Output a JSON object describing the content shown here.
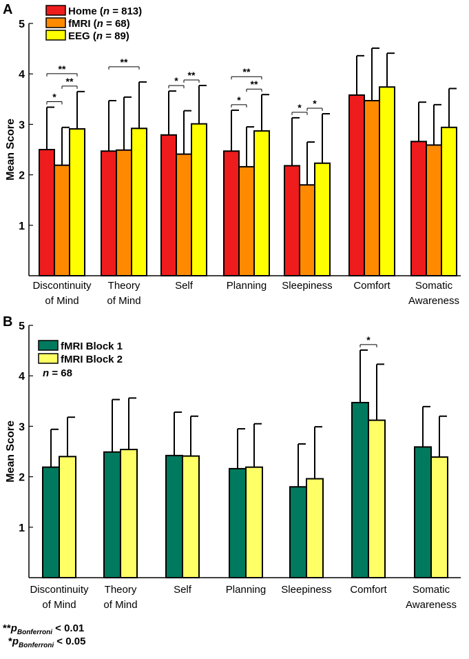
{
  "chart_data": [
    {
      "panel": "A",
      "type": "bar",
      "ylabel": "Mean Score",
      "ylim": [
        0,
        5
      ],
      "yticks": [
        1,
        2,
        3,
        4,
        5
      ],
      "grid": false,
      "legend_position": "top-left",
      "categories": [
        [
          "Discontinuity",
          "of Mind"
        ],
        [
          "Theory",
          "of Mind"
        ],
        [
          "Self"
        ],
        [
          "Planning"
        ],
        [
          "Sleepiness"
        ],
        [
          "Comfort"
        ],
        [
          "Somatic",
          "Awareness"
        ]
      ],
      "series": [
        {
          "name": "Home",
          "n": "813",
          "color": "#ee1c1c",
          "values": [
            2.5,
            2.47,
            2.79,
            2.47,
            2.18,
            3.58,
            2.66
          ],
          "errors": [
            0.84,
            1.0,
            0.87,
            0.81,
            0.95,
            0.78,
            0.78
          ]
        },
        {
          "name": "fMRI",
          "n": "68",
          "color": "#ff8a00",
          "values": [
            2.19,
            2.49,
            2.41,
            2.16,
            1.8,
            3.47,
            2.59
          ],
          "errors": [
            0.75,
            1.05,
            0.86,
            0.79,
            0.85,
            1.04,
            0.8
          ]
        },
        {
          "name": "EEG",
          "n": "89",
          "color": "#ffff00",
          "values": [
            2.91,
            2.92,
            3.01,
            2.87,
            2.23,
            3.74,
            2.94
          ],
          "errors": [
            0.74,
            0.92,
            0.76,
            0.72,
            0.98,
            0.67,
            0.77
          ]
        }
      ],
      "significance": [
        {
          "category": 0,
          "from": 0,
          "to": 2,
          "label": "**"
        },
        {
          "category": 0,
          "from": 0,
          "to": 1,
          "label": "*"
        },
        {
          "category": 0,
          "from": 1,
          "to": 2,
          "label": "**"
        },
        {
          "category": 1,
          "from": 0,
          "to": 2,
          "label": "**"
        },
        {
          "category": 2,
          "from": 0,
          "to": 1,
          "label": "*"
        },
        {
          "category": 2,
          "from": 1,
          "to": 2,
          "label": "**"
        },
        {
          "category": 3,
          "from": 0,
          "to": 2,
          "label": "**"
        },
        {
          "category": 3,
          "from": 0,
          "to": 1,
          "label": "*"
        },
        {
          "category": 3,
          "from": 1,
          "to": 2,
          "label": "**"
        },
        {
          "category": 4,
          "from": 0,
          "to": 1,
          "label": "*"
        },
        {
          "category": 4,
          "from": 1,
          "to": 2,
          "label": "*"
        }
      ]
    },
    {
      "panel": "B",
      "type": "bar",
      "ylabel": "Mean Score",
      "ylim": [
        0,
        5
      ],
      "yticks": [
        1,
        2,
        3,
        4,
        5
      ],
      "grid": false,
      "legend_position": "top-left",
      "note": "n = 68",
      "categories": [
        [
          "Discontinuity",
          "of Mind"
        ],
        [
          "Theory",
          "of Mind"
        ],
        [
          "Self"
        ],
        [
          "Planning"
        ],
        [
          "Sleepiness"
        ],
        [
          "Comfort"
        ],
        [
          "Somatic",
          "Awareness"
        ]
      ],
      "series": [
        {
          "name": "fMRI Block 1",
          "color": "#007a5e",
          "values": [
            2.19,
            2.49,
            2.42,
            2.16,
            1.8,
            3.47,
            2.59
          ],
          "errors": [
            0.75,
            1.04,
            0.86,
            0.79,
            0.85,
            1.04,
            0.8
          ]
        },
        {
          "name": "fMRI Block 2",
          "color": "#ffff66",
          "values": [
            2.4,
            2.54,
            2.41,
            2.19,
            1.96,
            3.12,
            2.39
          ],
          "errors": [
            0.78,
            1.02,
            0.79,
            0.86,
            1.03,
            1.11,
            0.81
          ]
        }
      ],
      "significance": [
        {
          "category": 5,
          "from": 0,
          "to": 1,
          "label": "*"
        }
      ]
    }
  ],
  "footnotes": [
    {
      "stars": "**",
      "p": "p",
      "sub": "Bonferroni",
      "rest": " < 0.01"
    },
    {
      "stars": "*",
      "p": "p",
      "sub": "Bonferroni",
      "rest": " < 0.05"
    }
  ]
}
